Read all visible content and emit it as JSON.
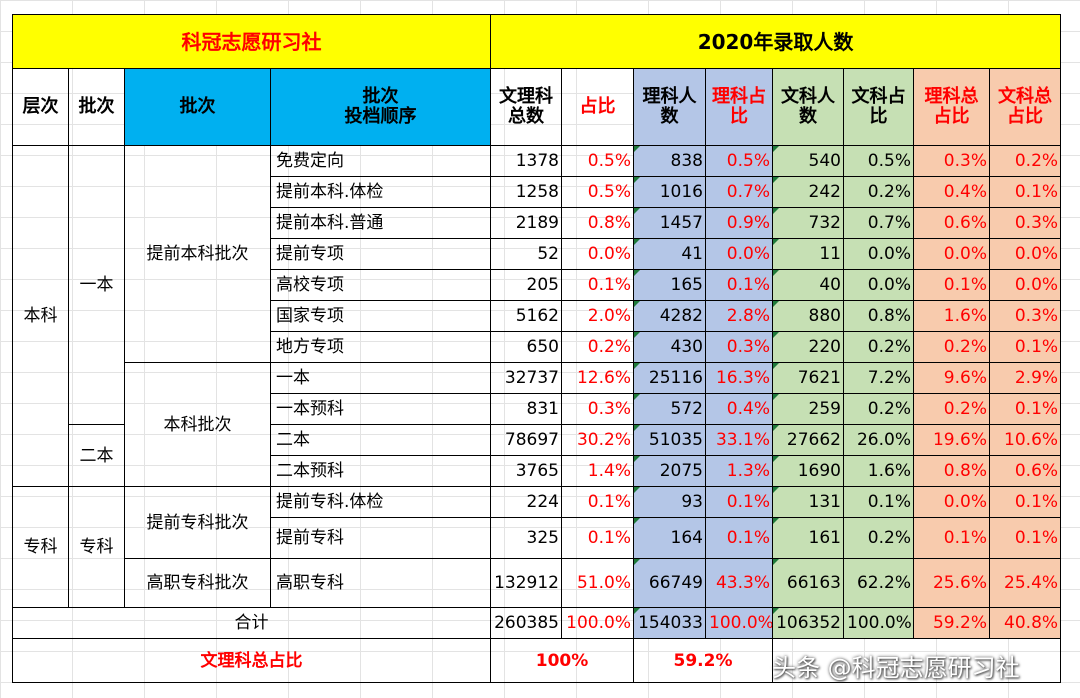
{
  "header": {
    "left_title": "科冠志愿研习社",
    "right_title": "2020年录取人数"
  },
  "columns": {
    "level": "层次",
    "tier": "批次",
    "batch": "批次",
    "order_line1": "批次",
    "order_line2": "投档顺序",
    "total_line1": "文理科",
    "total_line2": "总数",
    "share": "占比",
    "sci_line1": "理科人",
    "sci_line2": "数",
    "sci_share_line1": "理科占",
    "sci_share_line2": "比",
    "art_line1": "文科人",
    "art_line2": "数",
    "art_share_line1": "文科占",
    "art_share_line2": "比",
    "sci_total_line1": "理科总",
    "sci_total_line2": "占比",
    "art_total_line1": "文科总",
    "art_total_line2": "占比"
  },
  "groups": {
    "level_benke": "本科",
    "level_zhuanke": "专科",
    "tier_yiben": "一本",
    "tier_erben": "二本",
    "tier_zhuanke": "专科",
    "batch_tiqian": "提前本科批次",
    "batch_benke": "本科批次",
    "batch_tiqian_zhuanke": "提前专科批次",
    "batch_gaozhi": "高职专科批次"
  },
  "rows": [
    {
      "order": "免费定向",
      "total": "1378",
      "share": "0.5%",
      "sci": "838",
      "sci_share": "0.5%",
      "art": "540",
      "art_share": "0.5%",
      "sci_total": "0.3%",
      "art_total": "0.2%"
    },
    {
      "order": "提前本科.体检",
      "total": "1258",
      "share": "0.5%",
      "sci": "1016",
      "sci_share": "0.7%",
      "art": "242",
      "art_share": "0.2%",
      "sci_total": "0.4%",
      "art_total": "0.1%"
    },
    {
      "order": "提前本科.普通",
      "total": "2189",
      "share": "0.8%",
      "sci": "1457",
      "sci_share": "0.9%",
      "art": "732",
      "art_share": "0.7%",
      "sci_total": "0.6%",
      "art_total": "0.3%"
    },
    {
      "order": "提前专项",
      "total": "52",
      "share": "0.0%",
      "sci": "41",
      "sci_share": "0.0%",
      "art": "11",
      "art_share": "0.0%",
      "sci_total": "0.0%",
      "art_total": "0.0%"
    },
    {
      "order": "高校专项",
      "total": "205",
      "share": "0.1%",
      "sci": "165",
      "sci_share": "0.1%",
      "art": "40",
      "art_share": "0.0%",
      "sci_total": "0.1%",
      "art_total": "0.0%"
    },
    {
      "order": "国家专项",
      "total": "5162",
      "share": "2.0%",
      "sci": "4282",
      "sci_share": "2.8%",
      "art": "880",
      "art_share": "0.8%",
      "sci_total": "1.6%",
      "art_total": "0.3%"
    },
    {
      "order": "地方专项",
      "total": "650",
      "share": "0.2%",
      "sci": "430",
      "sci_share": "0.3%",
      "art": "220",
      "art_share": "0.2%",
      "sci_total": "0.2%",
      "art_total": "0.1%"
    },
    {
      "order": "一本",
      "total": "32737",
      "share": "12.6%",
      "sci": "25116",
      "sci_share": "16.3%",
      "art": "7621",
      "art_share": "7.2%",
      "sci_total": "9.6%",
      "art_total": "2.9%"
    },
    {
      "order": "一本预科",
      "total": "831",
      "share": "0.3%",
      "sci": "572",
      "sci_share": "0.4%",
      "art": "259",
      "art_share": "0.2%",
      "sci_total": "0.2%",
      "art_total": "0.1%"
    },
    {
      "order": "二本",
      "total": "78697",
      "share": "30.2%",
      "sci": "51035",
      "sci_share": "33.1%",
      "art": "27662",
      "art_share": "26.0%",
      "sci_total": "19.6%",
      "art_total": "10.6%"
    },
    {
      "order": "二本预科",
      "total": "3765",
      "share": "1.4%",
      "sci": "2075",
      "sci_share": "1.3%",
      "art": "1690",
      "art_share": "1.6%",
      "sci_total": "0.8%",
      "art_total": "0.6%"
    },
    {
      "order": "提前专科.体检",
      "total": "224",
      "share": "0.1%",
      "sci": "93",
      "sci_share": "0.1%",
      "art": "131",
      "art_share": "0.1%",
      "sci_total": "0.0%",
      "art_total": "0.1%"
    },
    {
      "order": "提前专科",
      "total": "325",
      "share": "0.1%",
      "sci": "164",
      "sci_share": "0.1%",
      "art": "161",
      "art_share": "0.2%",
      "sci_total": "0.1%",
      "art_total": "0.1%"
    },
    {
      "order": "高职专科",
      "total": "132912",
      "share": "51.0%",
      "sci": "66749",
      "sci_share": "43.3%",
      "art": "66163",
      "art_share": "62.2%",
      "sci_total": "25.6%",
      "art_total": "25.4%"
    }
  ],
  "total_row": {
    "label": "合计",
    "total": "260385",
    "share": "100.0%",
    "sci": "154033",
    "sci_share": "100.0%",
    "art": "106352",
    "art_share": "100.0%",
    "sci_total": "59.2%",
    "art_total": "40.8%"
  },
  "footer_row": {
    "label": "文理科总占比",
    "share": "100%",
    "sci_total": "59.2%"
  },
  "watermark": "头条 @科冠志愿研习社"
}
